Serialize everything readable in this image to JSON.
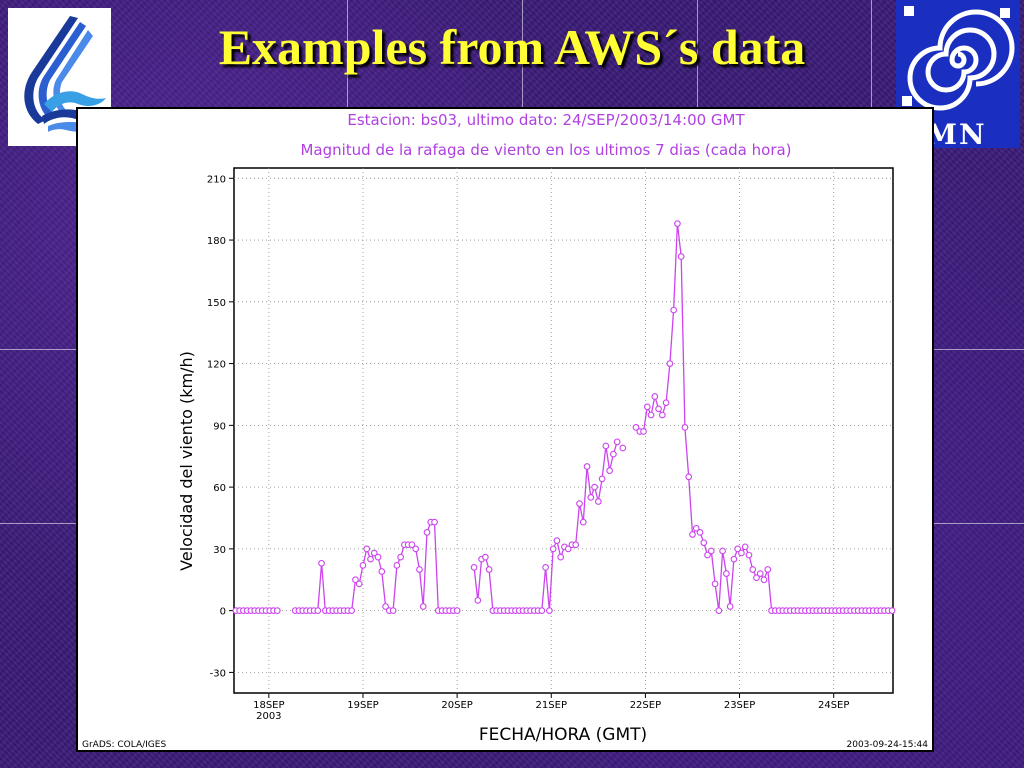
{
  "slide": {
    "title": "Examples from AWS´s data",
    "accent_color": "#ffff33",
    "left_logo": "wave-bird-logo",
    "right_logo": "spiral-smn-logo",
    "right_logo_text": "MN"
  },
  "chart_data": {
    "type": "line",
    "title": "Estacion: bs03, ultimo dato: 24/SEP/2003/14:00 GMT",
    "subtitle": "Magnitud de la rafaga de viento en los ultimos 7 dias (cada hora)",
    "xlabel": "FECHA/HORA (GMT)",
    "ylabel": "Velocidad del viento (km/h)",
    "ylim": [
      -40,
      215
    ],
    "xlim": [
      -0.37,
      6.63
    ],
    "yticks": [
      -30,
      0,
      30,
      60,
      90,
      120,
      150,
      180,
      210
    ],
    "xticks": [
      {
        "x": 0,
        "label": "18SEP",
        "sublabel": "2003"
      },
      {
        "x": 1,
        "label": "19SEP",
        "sublabel": ""
      },
      {
        "x": 2,
        "label": "20SEP",
        "sublabel": ""
      },
      {
        "x": 3,
        "label": "21SEP",
        "sublabel": ""
      },
      {
        "x": 4,
        "label": "22SEP",
        "sublabel": ""
      },
      {
        "x": 5,
        "label": "23SEP",
        "sublabel": ""
      },
      {
        "x": 6,
        "label": "24SEP",
        "sublabel": ""
      }
    ],
    "grid": true,
    "line_color": "#cc44ee",
    "footer_left": "GrADS: COLA/IGES",
    "footer_right": "2003-09-24-15:44",
    "segments": [
      [
        [
          -0.35,
          0
        ],
        [
          -0.31,
          0
        ],
        [
          -0.27,
          0
        ],
        [
          -0.23,
          0
        ],
        [
          -0.19,
          0
        ],
        [
          -0.15,
          0
        ],
        [
          -0.11,
          0
        ],
        [
          -0.07,
          0
        ],
        [
          -0.03,
          0
        ],
        [
          0.01,
          0
        ],
        [
          0.05,
          0
        ],
        [
          0.09,
          0
        ]
      ],
      [
        [
          0.28,
          0
        ],
        [
          0.32,
          0
        ],
        [
          0.36,
          0
        ],
        [
          0.4,
          0
        ],
        [
          0.44,
          0
        ],
        [
          0.48,
          0
        ],
        [
          0.52,
          0
        ],
        [
          0.56,
          23
        ],
        [
          0.6,
          0
        ],
        [
          0.64,
          0
        ],
        [
          0.68,
          0
        ],
        [
          0.72,
          0
        ],
        [
          0.76,
          0
        ],
        [
          0.8,
          0
        ],
        [
          0.84,
          0
        ],
        [
          0.88,
          0
        ],
        [
          0.92,
          15
        ],
        [
          0.96,
          13
        ],
        [
          1.0,
          22
        ],
        [
          1.04,
          30
        ],
        [
          1.08,
          25
        ],
        [
          1.12,
          28
        ],
        [
          1.16,
          26
        ],
        [
          1.2,
          19
        ],
        [
          1.24,
          2
        ],
        [
          1.28,
          0
        ],
        [
          1.32,
          0
        ],
        [
          1.36,
          22
        ],
        [
          1.4,
          26
        ],
        [
          1.44,
          32
        ],
        [
          1.48,
          32
        ],
        [
          1.52,
          32
        ],
        [
          1.56,
          30
        ],
        [
          1.6,
          20
        ],
        [
          1.64,
          2
        ],
        [
          1.68,
          38
        ],
        [
          1.72,
          43
        ],
        [
          1.76,
          43
        ],
        [
          1.8,
          0
        ],
        [
          1.84,
          0
        ],
        [
          1.88,
          0
        ],
        [
          1.92,
          0
        ],
        [
          1.96,
          0
        ],
        [
          2.0,
          0
        ]
      ],
      [
        [
          2.18,
          21
        ],
        [
          2.22,
          5
        ],
        [
          2.26,
          25
        ],
        [
          2.3,
          26
        ],
        [
          2.34,
          20
        ],
        [
          2.38,
          0
        ],
        [
          2.42,
          0
        ],
        [
          2.46,
          0
        ],
        [
          2.5,
          0
        ],
        [
          2.54,
          0
        ],
        [
          2.58,
          0
        ],
        [
          2.62,
          0
        ],
        [
          2.66,
          0
        ],
        [
          2.7,
          0
        ],
        [
          2.74,
          0
        ],
        [
          2.78,
          0
        ],
        [
          2.82,
          0
        ],
        [
          2.86,
          0
        ],
        [
          2.9,
          0
        ],
        [
          2.94,
          21
        ],
        [
          2.98,
          0
        ],
        [
          3.02,
          30
        ],
        [
          3.06,
          34
        ],
        [
          3.1,
          26
        ],
        [
          3.14,
          31
        ],
        [
          3.18,
          30
        ],
        [
          3.22,
          32
        ],
        [
          3.26,
          32
        ],
        [
          3.3,
          52
        ],
        [
          3.34,
          43
        ],
        [
          3.38,
          70
        ],
        [
          3.42,
          55
        ],
        [
          3.46,
          60
        ],
        [
          3.5,
          53
        ],
        [
          3.54,
          64
        ],
        [
          3.58,
          80
        ],
        [
          3.62,
          68
        ],
        [
          3.66,
          76
        ],
        [
          3.7,
          82
        ]
      ],
      [
        [
          3.76,
          79
        ]
      ],
      [
        [
          3.9,
          89
        ],
        [
          3.94,
          87
        ],
        [
          3.98,
          87
        ],
        [
          4.02,
          99
        ],
        [
          4.06,
          95
        ],
        [
          4.1,
          104
        ],
        [
          4.14,
          98
        ],
        [
          4.18,
          95
        ],
        [
          4.22,
          101
        ],
        [
          4.26,
          120
        ],
        [
          4.3,
          146
        ],
        [
          4.34,
          188
        ],
        [
          4.38,
          172
        ],
        [
          4.42,
          89
        ],
        [
          4.46,
          65
        ],
        [
          4.5,
          37
        ],
        [
          4.54,
          40
        ],
        [
          4.58,
          38
        ],
        [
          4.62,
          33
        ],
        [
          4.66,
          27
        ],
        [
          4.7,
          29
        ],
        [
          4.74,
          13
        ],
        [
          4.78,
          0
        ],
        [
          4.82,
          29
        ],
        [
          4.86,
          18
        ],
        [
          4.9,
          2
        ],
        [
          4.94,
          25
        ],
        [
          4.98,
          30
        ],
        [
          5.02,
          28
        ],
        [
          5.06,
          31
        ],
        [
          5.1,
          27
        ],
        [
          5.14,
          20
        ],
        [
          5.18,
          16
        ],
        [
          5.22,
          18
        ],
        [
          5.26,
          15
        ],
        [
          5.3,
          20
        ],
        [
          5.34,
          0
        ],
        [
          5.38,
          0
        ],
        [
          5.42,
          0
        ],
        [
          5.46,
          0
        ],
        [
          5.5,
          0
        ],
        [
          5.54,
          0
        ],
        [
          5.58,
          0
        ],
        [
          5.62,
          0
        ],
        [
          5.66,
          0
        ],
        [
          5.7,
          0
        ],
        [
          5.74,
          0
        ],
        [
          5.78,
          0
        ],
        [
          5.82,
          0
        ],
        [
          5.86,
          0
        ],
        [
          5.9,
          0
        ],
        [
          5.94,
          0
        ],
        [
          5.98,
          0
        ],
        [
          6.02,
          0
        ],
        [
          6.06,
          0
        ],
        [
          6.1,
          0
        ],
        [
          6.14,
          0
        ],
        [
          6.18,
          0
        ],
        [
          6.22,
          0
        ],
        [
          6.26,
          0
        ],
        [
          6.3,
          0
        ],
        [
          6.34,
          0
        ],
        [
          6.38,
          0
        ],
        [
          6.42,
          0
        ],
        [
          6.46,
          0
        ],
        [
          6.5,
          0
        ],
        [
          6.54,
          0
        ],
        [
          6.58,
          0
        ],
        [
          6.62,
          0
        ]
      ]
    ]
  }
}
